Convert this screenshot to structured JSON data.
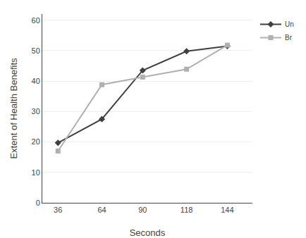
{
  "chart_data": {
    "type": "line",
    "x": [
      36,
      64,
      90,
      118,
      144
    ],
    "series": [
      {
        "name": "Un",
        "color": "#404040",
        "marker": "diamond",
        "values": [
          19.7,
          27.5,
          43.5,
          49.8,
          51.5
        ]
      },
      {
        "name": "Br",
        "color": "#b0b0b0",
        "marker": "square",
        "values": [
          17.0,
          38.8,
          41.3,
          43.9,
          51.8
        ]
      }
    ],
    "xlabel": "Seconds",
    "ylabel": "Extent of Health Benefits",
    "xlim": [
      26,
      160
    ],
    "ylim": [
      0,
      62
    ],
    "xticks": [
      36,
      64,
      90,
      118,
      144
    ],
    "yticks": [
      0,
      10,
      20,
      30,
      40,
      50,
      60
    ],
    "grid": "y",
    "legend": "right"
  }
}
